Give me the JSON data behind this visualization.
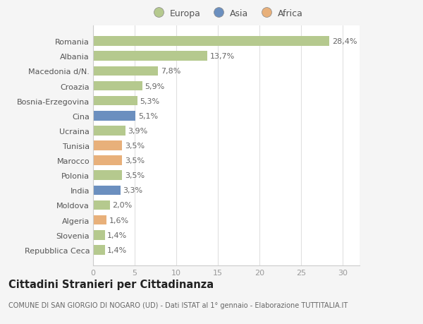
{
  "categories": [
    "Repubblica Ceca",
    "Slovenia",
    "Algeria",
    "Moldova",
    "India",
    "Polonia",
    "Marocco",
    "Tunisia",
    "Ucraina",
    "Cina",
    "Bosnia-Erzegovina",
    "Croazia",
    "Macedonia d/N.",
    "Albania",
    "Romania"
  ],
  "values": [
    1.4,
    1.4,
    1.6,
    2.0,
    3.3,
    3.5,
    3.5,
    3.5,
    3.9,
    5.1,
    5.3,
    5.9,
    7.8,
    13.7,
    28.4
  ],
  "continents": [
    "Europa",
    "Europa",
    "Africa",
    "Europa",
    "Asia",
    "Europa",
    "Africa",
    "Africa",
    "Europa",
    "Asia",
    "Europa",
    "Europa",
    "Europa",
    "Europa",
    "Europa"
  ],
  "labels": [
    "1,4%",
    "1,4%",
    "1,6%",
    "2,0%",
    "3,3%",
    "3,5%",
    "3,5%",
    "3,5%",
    "3,9%",
    "5,1%",
    "5,3%",
    "5,9%",
    "7,8%",
    "13,7%",
    "28,4%"
  ],
  "colors": {
    "Europa": "#b5c98e",
    "Asia": "#6b8fbf",
    "Africa": "#e8b07a"
  },
  "title": "Cittadini Stranieri per Cittadinanza",
  "subtitle": "COMUNE DI SAN GIORGIO DI NOGARO (UD) - Dati ISTAT al 1° gennaio - Elaborazione TUTTITALIA.IT",
  "xlim": [
    0,
    32
  ],
  "xticks": [
    0,
    5,
    10,
    15,
    20,
    25,
    30
  ],
  "background_color": "#f5f5f5",
  "plot_bg_color": "#ffffff",
  "grid_color": "#e0e0e0",
  "bar_height": 0.65,
  "label_fontsize": 8.0,
  "tick_fontsize": 8.0,
  "ytick_fontsize": 8.0,
  "title_fontsize": 10.5,
  "subtitle_fontsize": 7.0,
  "legend_fontsize": 9.0
}
